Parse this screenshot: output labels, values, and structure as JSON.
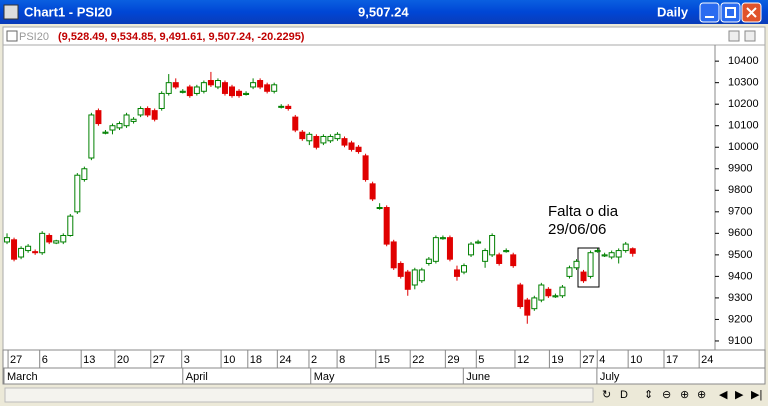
{
  "window": {
    "title": "Chart1 - PSI20",
    "last": "9,507.24",
    "period": "Daily"
  },
  "chart_data": {
    "type": "candlestick",
    "symbol": "PSI20",
    "readout": "(9,528.49, 9,534.85, 9,491.61, 9,507.24, -20.2295)",
    "annotation": [
      "Falta o dia",
      "29/06/06"
    ],
    "up_color": "#008000",
    "down_color": "#e00000",
    "xlim": [
      -0.43,
      100.7
    ],
    "ylim": [
      9058,
      10475
    ],
    "yticks": [
      9100,
      9200,
      9300,
      9400,
      9500,
      9600,
      9700,
      9800,
      9900,
      10000,
      10100,
      10200,
      10300,
      10400
    ],
    "xticks": [
      {
        "value": 1,
        "label": "27"
      },
      {
        "value": 5.5,
        "label": "6"
      },
      {
        "value": 11.4,
        "label": "13"
      },
      {
        "value": 16.2,
        "label": "20"
      },
      {
        "value": 21.3,
        "label": "27"
      },
      {
        "value": 25.7,
        "label": "3"
      },
      {
        "value": 31.3,
        "label": "10"
      },
      {
        "value": 35.1,
        "label": "18"
      },
      {
        "value": 39.3,
        "label": "24"
      },
      {
        "value": 43.8,
        "label": "2"
      },
      {
        "value": 47.8,
        "label": "8"
      },
      {
        "value": 53.3,
        "label": "15"
      },
      {
        "value": 58.2,
        "label": "22"
      },
      {
        "value": 63.2,
        "label": "29"
      },
      {
        "value": 67.6,
        "label": "5"
      },
      {
        "value": 73.1,
        "label": "12"
      },
      {
        "value": 78,
        "label": "19"
      },
      {
        "value": 82.4,
        "label": "27"
      },
      {
        "value": 84.8,
        "label": "4"
      },
      {
        "value": 89.2,
        "label": "10"
      },
      {
        "value": 94.3,
        "label": "17"
      },
      {
        "value": 99.3,
        "label": "24"
      }
    ],
    "months": [
      {
        "value": -0.43,
        "label": "March"
      },
      {
        "value": 25,
        "label": "April"
      },
      {
        "value": 43.2,
        "label": "May"
      },
      {
        "value": 64.9,
        "label": "June"
      },
      {
        "value": 83.9,
        "label": "July"
      }
    ],
    "ohlc": [
      [
        9560,
        9600,
        9550,
        9580
      ],
      [
        9570,
        9580,
        9470,
        9480
      ],
      [
        9490,
        9540,
        9480,
        9530
      ],
      [
        9520,
        9550,
        9510,
        9540
      ],
      [
        9515,
        9525,
        9500,
        9510
      ],
      [
        9510,
        9610,
        9500,
        9600
      ],
      [
        9590,
        9600,
        9550,
        9560
      ],
      [
        9555,
        9570,
        9550,
        9565
      ],
      [
        9560,
        9600,
        9550,
        9590
      ],
      [
        9590,
        9690,
        9585,
        9680
      ],
      [
        9700,
        9880,
        9690,
        9870
      ],
      [
        9850,
        9910,
        9840,
        9900
      ],
      [
        9950,
        10160,
        9940,
        10150
      ],
      [
        10170,
        10180,
        10100,
        10110
      ],
      [
        10065,
        10080,
        10060,
        10070
      ],
      [
        10080,
        10110,
        10060,
        10100
      ],
      [
        10090,
        10120,
        10080,
        10110
      ],
      [
        10100,
        10160,
        10090,
        10150
      ],
      [
        10120,
        10140,
        10110,
        10130
      ],
      [
        10150,
        10190,
        10140,
        10180
      ],
      [
        10180,
        10190,
        10140,
        10150
      ],
      [
        10170,
        10180,
        10120,
        10130
      ],
      [
        10180,
        10260,
        10170,
        10250
      ],
      [
        10250,
        10340,
        10240,
        10300
      ],
      [
        10300,
        10320,
        10270,
        10280
      ],
      [
        10255,
        10270,
        10250,
        10260
      ],
      [
        10280,
        10290,
        10230,
        10240
      ],
      [
        10250,
        10290,
        10240,
        10280
      ],
      [
        10260,
        10310,
        10250,
        10300
      ],
      [
        10310,
        10350,
        10280,
        10290
      ],
      [
        10280,
        10320,
        10270,
        10310
      ],
      [
        10300,
        10310,
        10240,
        10250
      ],
      [
        10280,
        10290,
        10230,
        10240
      ],
      [
        10260,
        10270,
        10230,
        10240
      ],
      [
        10245,
        10260,
        10240,
        10250
      ],
      [
        10280,
        10320,
        10270,
        10300
      ],
      [
        10310,
        10320,
        10270,
        10280
      ],
      [
        10290,
        10300,
        10250,
        10260
      ],
      [
        10260,
        10300,
        10250,
        10290
      ],
      [
        10190,
        10200,
        10180,
        10190
      ],
      [
        10190,
        10200,
        10170,
        10180
      ],
      [
        10140,
        10150,
        10070,
        10080
      ],
      [
        10070,
        10080,
        10030,
        10040
      ],
      [
        10030,
        10070,
        10010,
        10060
      ],
      [
        10050,
        10060,
        9990,
        10000
      ],
      [
        10020,
        10060,
        10010,
        10050
      ],
      [
        10030,
        10060,
        10020,
        10050
      ],
      [
        10040,
        10070,
        10030,
        10060
      ],
      [
        10040,
        10050,
        10000,
        10010
      ],
      [
        10020,
        10030,
        9980,
        9990
      ],
      [
        10000,
        10010,
        9970,
        9980
      ],
      [
        9960,
        9970,
        9840,
        9850
      ],
      [
        9830,
        9840,
        9750,
        9760
      ],
      [
        9720,
        9740,
        9710,
        9720
      ],
      [
        9720,
        9730,
        9540,
        9550
      ],
      [
        9560,
        9570,
        9430,
        9440
      ],
      [
        9460,
        9470,
        9390,
        9400
      ],
      [
        9420,
        9430,
        9310,
        9340
      ],
      [
        9360,
        9440,
        9340,
        9430
      ],
      [
        9380,
        9440,
        9370,
        9430
      ],
      [
        9460,
        9490,
        9450,
        9480
      ],
      [
        9470,
        9590,
        9460,
        9580
      ],
      [
        9575,
        9590,
        9570,
        9580
      ],
      [
        9580,
        9590,
        9470,
        9480
      ],
      [
        9430,
        9450,
        9380,
        9400
      ],
      [
        9420,
        9460,
        9410,
        9450
      ],
      [
        9500,
        9560,
        9490,
        9550
      ],
      [
        9555,
        9570,
        9550,
        9560
      ],
      [
        9470,
        9530,
        9440,
        9520
      ],
      [
        9500,
        9600,
        9490,
        9590
      ],
      [
        9500,
        9510,
        9450,
        9460
      ],
      [
        9515,
        9530,
        9510,
        9520
      ],
      [
        9500,
        9510,
        9440,
        9450
      ],
      [
        9360,
        9370,
        9250,
        9260
      ],
      [
        9290,
        9300,
        9180,
        9220
      ],
      [
        9250,
        9310,
        9240,
        9300
      ],
      [
        9290,
        9370,
        9280,
        9360
      ],
      [
        9340,
        9350,
        9300,
        9310
      ],
      [
        9305,
        9320,
        9300,
        9310
      ],
      [
        9310,
        9360,
        9300,
        9350
      ],
      [
        9400,
        9450,
        9390,
        9440
      ],
      [
        9440,
        9480,
        9430,
        9470
      ],
      [
        9420,
        9430,
        9370,
        9380
      ],
      [
        9400,
        9520,
        9390,
        9510
      ],
      [
        9515,
        9530,
        9510,
        9520
      ],
      [
        9495,
        9510,
        9490,
        9500
      ],
      [
        9490,
        9520,
        9480,
        9510
      ],
      [
        9490,
        9530,
        9460,
        9520
      ],
      [
        9520,
        9560,
        9510,
        9550
      ],
      [
        9528.49,
        9534.85,
        9491.61,
        9507.24
      ]
    ]
  }
}
